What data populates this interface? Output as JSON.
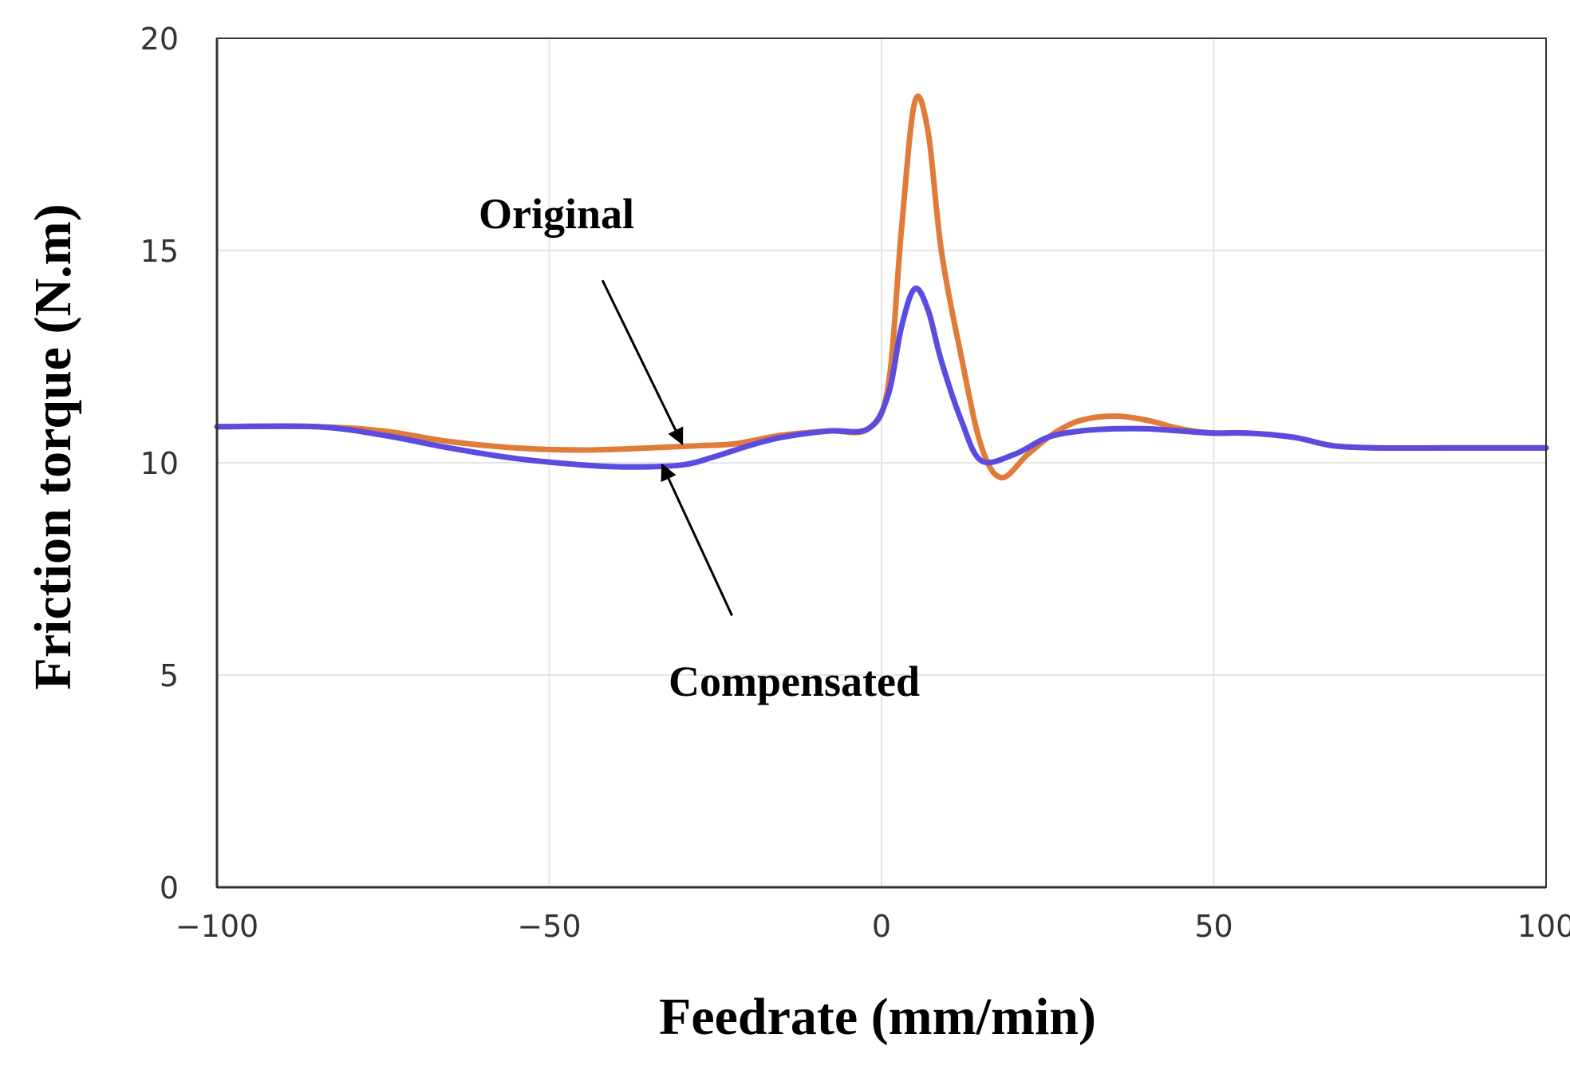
{
  "chart_data": {
    "type": "line",
    "title": "",
    "xlabel": "Feedrate (mm/min)",
    "ylabel": "Friction torque (N.m)",
    "xlim": [
      -100,
      100
    ],
    "ylim": [
      0,
      20
    ],
    "xticks": [
      -100,
      -50,
      0,
      50,
      100
    ],
    "yticks": [
      0,
      5,
      10,
      15,
      20
    ],
    "xtick_labels": [
      "−100",
      "−50",
      "0",
      "50",
      "100"
    ],
    "ytick_labels": [
      "0",
      "5",
      "10",
      "15",
      "20"
    ],
    "grid": true,
    "legend": "none",
    "series": [
      {
        "name": "Original",
        "color": "#E07B39",
        "x": [
          -100,
          -85,
          -75,
          -65,
          -55,
          -45,
          -35,
          -28,
          -22,
          -15,
          -8,
          -2,
          1,
          3,
          5,
          7,
          9,
          12,
          15,
          18,
          22,
          26,
          30,
          35,
          40,
          45,
          50,
          55,
          62,
          68,
          75,
          85,
          100
        ],
        "y": [
          10.85,
          10.85,
          10.75,
          10.5,
          10.35,
          10.3,
          10.35,
          10.4,
          10.45,
          10.65,
          10.75,
          10.8,
          11.8,
          15.5,
          18.5,
          17.8,
          15.0,
          12.5,
          10.4,
          9.65,
          10.2,
          10.7,
          11.0,
          11.1,
          11.0,
          10.8,
          10.7,
          10.7,
          10.6,
          10.4,
          10.35,
          10.35,
          10.35
        ]
      },
      {
        "name": "Compensated",
        "color": "#5B4BE0",
        "x": [
          -100,
          -85,
          -75,
          -65,
          -55,
          -45,
          -38,
          -30,
          -25,
          -20,
          -15,
          -8,
          -2,
          1,
          3,
          5,
          7,
          9,
          12,
          15,
          20,
          25,
          30,
          35,
          40,
          45,
          50,
          55,
          62,
          68,
          75,
          85,
          100
        ],
        "y": [
          10.85,
          10.85,
          10.65,
          10.35,
          10.1,
          9.95,
          9.9,
          9.95,
          10.15,
          10.4,
          10.6,
          10.75,
          10.8,
          11.6,
          13.2,
          14.1,
          13.6,
          12.4,
          11.0,
          10.05,
          10.2,
          10.6,
          10.75,
          10.8,
          10.8,
          10.75,
          10.7,
          10.7,
          10.6,
          10.4,
          10.35,
          10.35,
          10.35
        ]
      }
    ],
    "annotations": [
      {
        "text": "Original",
        "arrow_from": [
          -42,
          14.3
        ],
        "arrow_to": [
          -30,
          10.45
        ]
      },
      {
        "text": "Compensated",
        "arrow_from": [
          -22.5,
          6.4
        ],
        "arrow_to": [
          -33,
          9.95
        ]
      }
    ]
  },
  "style": {
    "background": "#ffffff",
    "grid_color": "#e4e4e4",
    "axis_color": "#333333",
    "arrow_color": "#000000"
  }
}
